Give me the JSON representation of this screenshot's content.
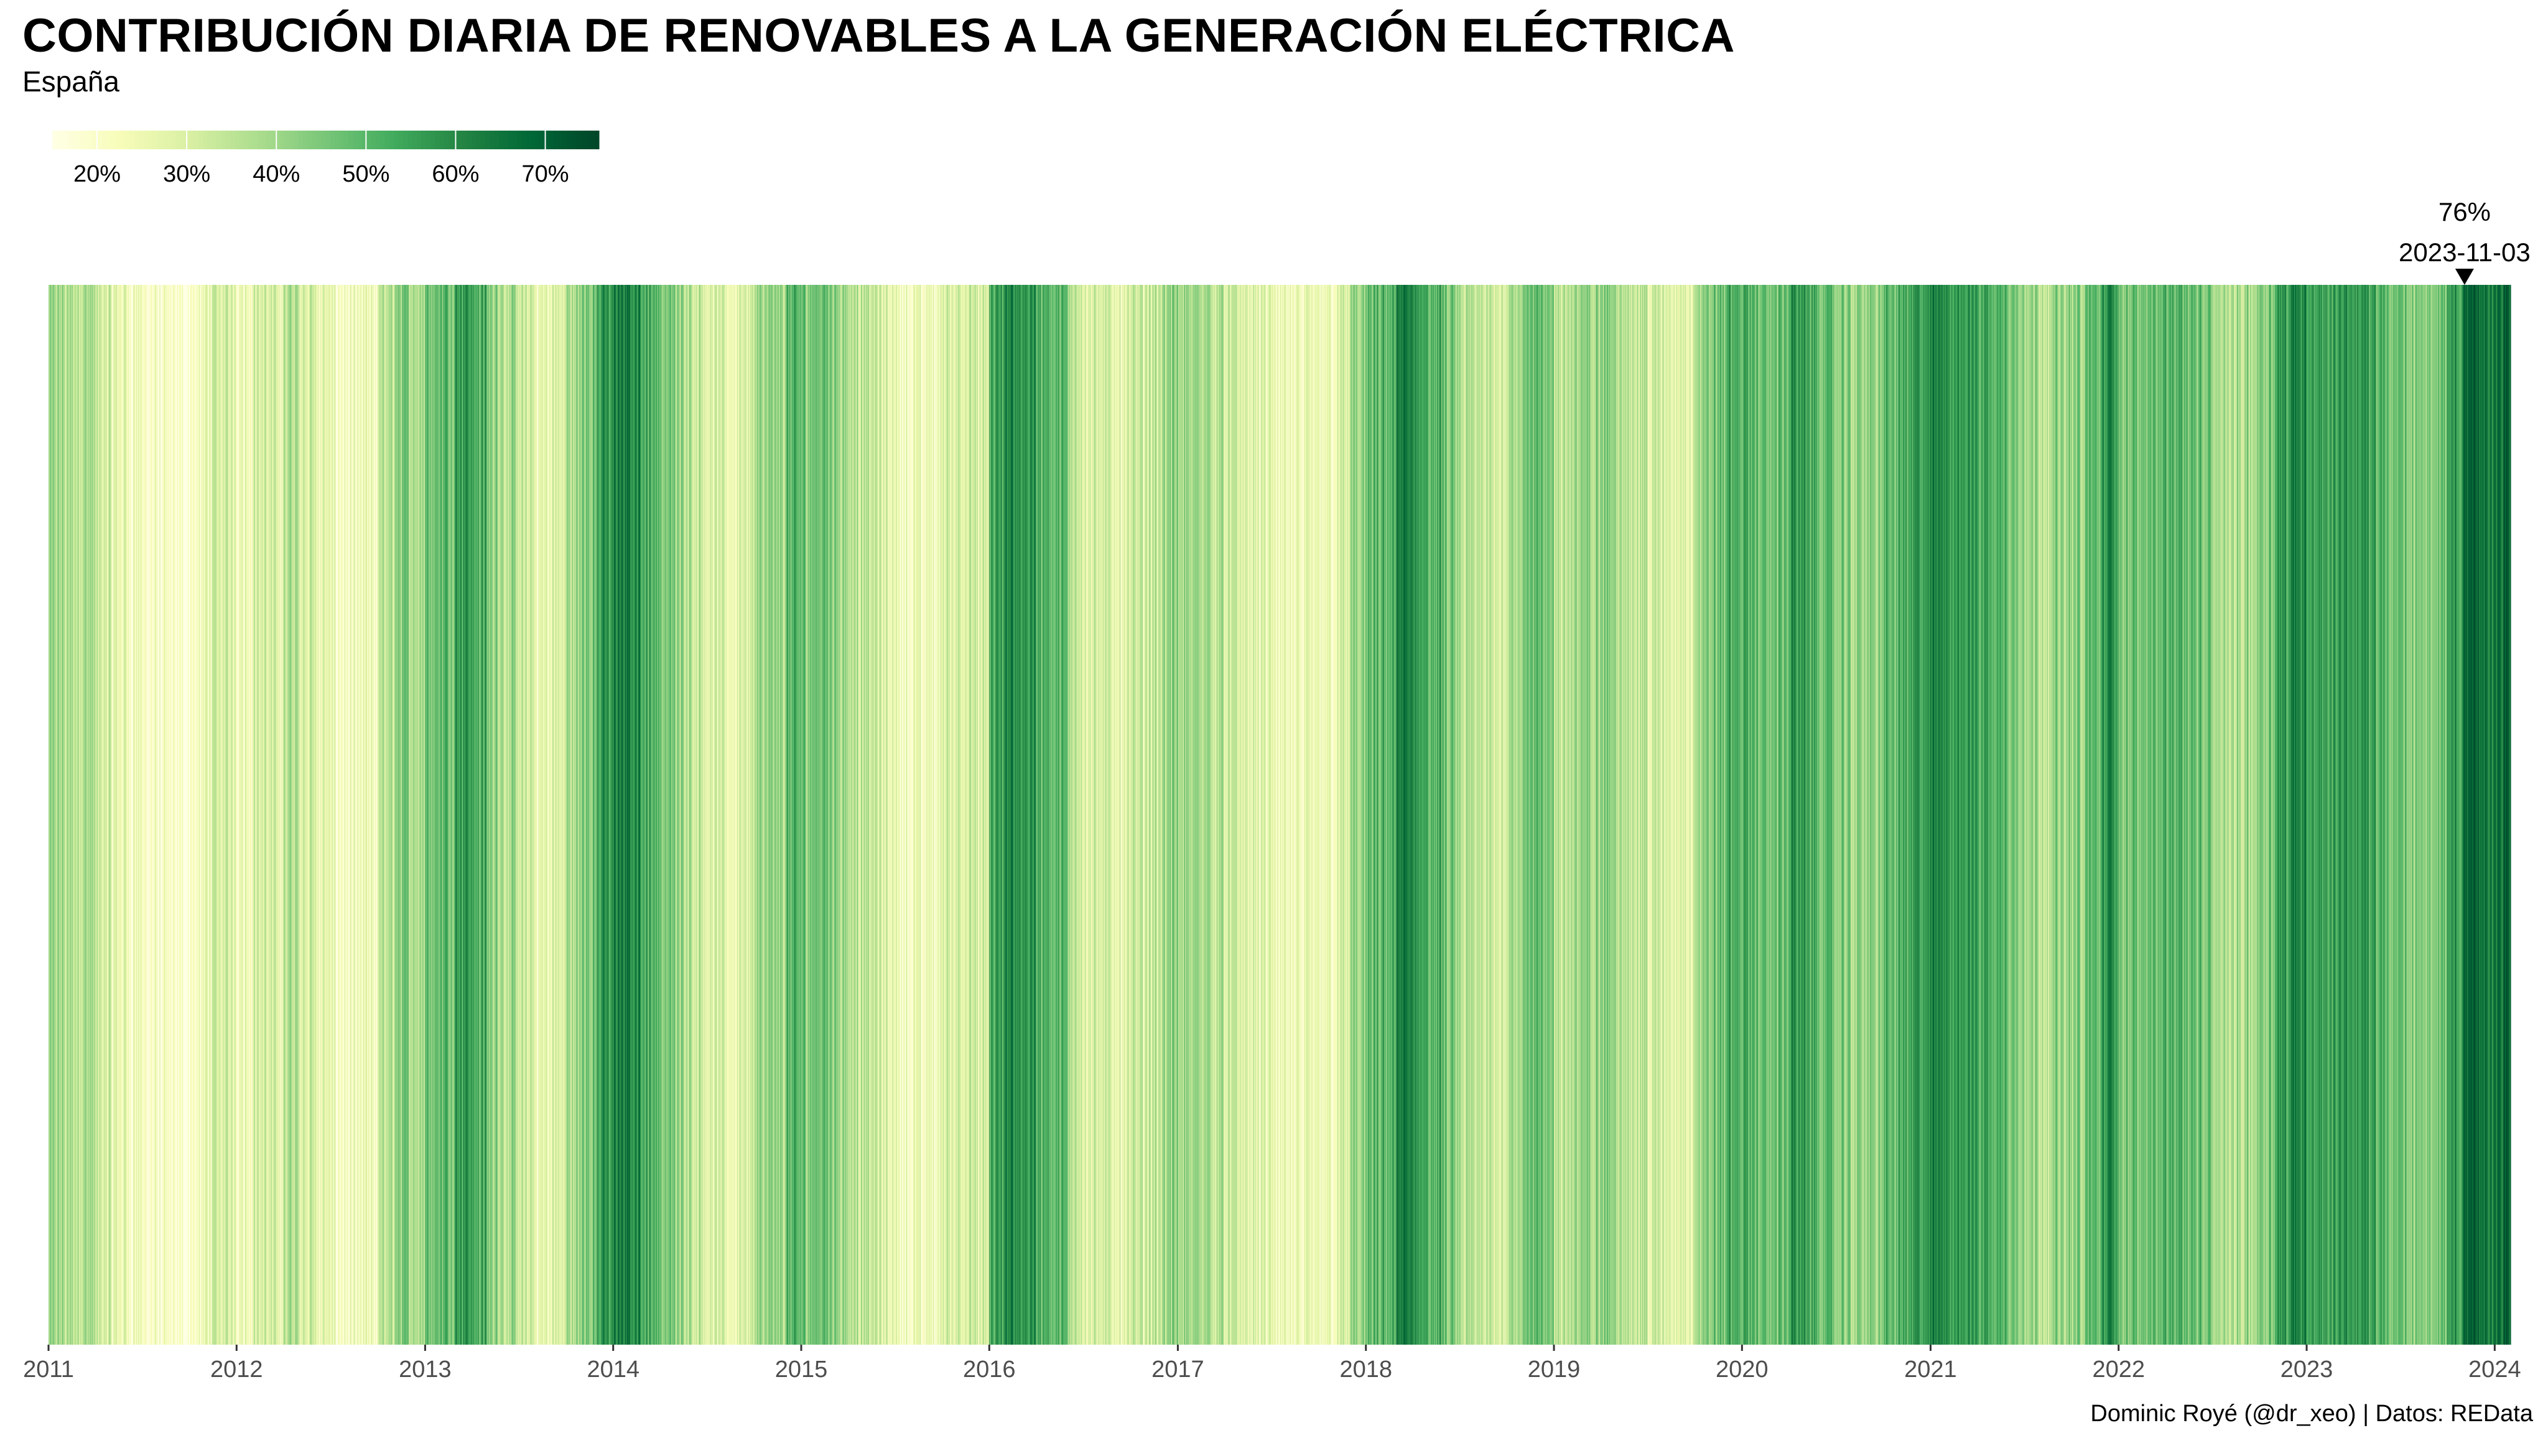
{
  "title": "CONTRIBUCIÓN DIARIA DE RENOVABLES A LA GENERACIÓN ELÉCTRICA",
  "subtitle": "España",
  "caption": "Dominic Royé (@dr_xeo) | Datos: REData",
  "chart_data": {
    "type": "heatmap",
    "description_value": "daily share of renewables in electricity generation (%)",
    "x_start": "2011-01-01",
    "x_end": "2024-01-31",
    "x_ticks": [
      "2011",
      "2012",
      "2013",
      "2014",
      "2015",
      "2016",
      "2017",
      "2018",
      "2019",
      "2020",
      "2021",
      "2022",
      "2023",
      "2024"
    ],
    "color_scale": {
      "palette": "YlGn",
      "min": 15,
      "max": 76,
      "breaks": [
        20,
        30,
        40,
        50,
        60,
        70
      ],
      "break_labels": [
        "20%",
        "30%",
        "40%",
        "50%",
        "60%",
        "70%"
      ],
      "colors": [
        "#ffffe5",
        "#f7fcb9",
        "#d9f0a3",
        "#addd8e",
        "#78c679",
        "#41ab5d",
        "#238443",
        "#006837",
        "#004529"
      ]
    },
    "monthly_mean_pct": [
      [
        2011,
        [
          38,
          36,
          38,
          30,
          26,
          24,
          20,
          18,
          17,
          20,
          28,
          30
        ]
      ],
      [
        2012,
        [
          26,
          30,
          28,
          36,
          32,
          26,
          22,
          20,
          22,
          34,
          42,
          40
        ]
      ],
      [
        2013,
        [
          48,
          50,
          58,
          52,
          42,
          36,
          30,
          26,
          28,
          38,
          46,
          56
        ]
      ],
      [
        2014,
        [
          62,
          60,
          52,
          44,
          40,
          34,
          28,
          26,
          30,
          38,
          40,
          48
        ]
      ],
      [
        2015,
        [
          46,
          48,
          42,
          36,
          32,
          28,
          24,
          22,
          24,
          30,
          32,
          28
        ]
      ],
      [
        2016,
        [
          54,
          60,
          58,
          52,
          48,
          36,
          30,
          28,
          28,
          30,
          34,
          40
        ]
      ],
      [
        2017,
        [
          38,
          40,
          36,
          30,
          28,
          26,
          24,
          22,
          22,
          24,
          28,
          40
        ]
      ],
      [
        2018,
        [
          46,
          50,
          62,
          56,
          50,
          42,
          34,
          32,
          30,
          40,
          48,
          44
        ]
      ],
      [
        2019,
        [
          36,
          38,
          40,
          42,
          38,
          34,
          30,
          28,
          30,
          40,
          46,
          52
        ]
      ],
      [
        2020,
        [
          50,
          46,
          48,
          56,
          52,
          46,
          42,
          40,
          42,
          48,
          52,
          56
        ]
      ],
      [
        2021,
        [
          60,
          58,
          56,
          54,
          50,
          46,
          40,
          38,
          40,
          42,
          48,
          58
        ]
      ],
      [
        2022,
        [
          46,
          44,
          50,
          52,
          48,
          44,
          38,
          36,
          40,
          46,
          56,
          62
        ]
      ],
      [
        2023,
        [
          56,
          54,
          58,
          56,
          52,
          46,
          44,
          42,
          46,
          56,
          68,
          64
        ]
      ],
      [
        2024,
        [
          66
        ]
      ]
    ],
    "annotation": {
      "label_value": "76%",
      "label_date": "2023-11-03",
      "value": 76,
      "date": "2023-11-03"
    }
  }
}
